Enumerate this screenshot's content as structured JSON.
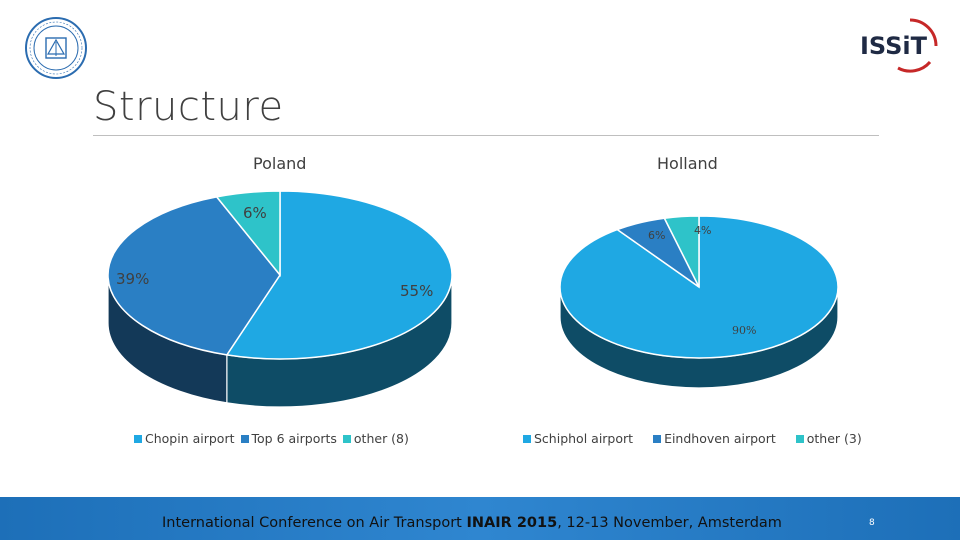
{
  "slide": {
    "title": "Structure",
    "footer_pre": "International Conference on Air Transport ",
    "footer_bold": "INAIR 2015",
    "footer_post": ", 12-13 November, Amsterdam",
    "page_number": "8",
    "logo_right_text": "ISSiT"
  },
  "chart_data": [
    {
      "type": "pie",
      "title": "Poland",
      "categories": [
        "Chopin airport",
        "Top 6 airports",
        "other (8)"
      ],
      "values": [
        55,
        39,
        6
      ],
      "labels": [
        "55%",
        "39%",
        "6%"
      ],
      "colors": [
        "#1fa8e3",
        "#2a7fc4",
        "#2ec3c9"
      ],
      "legend": "bottom"
    },
    {
      "type": "pie",
      "title": "Holland",
      "categories": [
        "Schiphol airport",
        "Eindhoven airport",
        "other (3)"
      ],
      "values": [
        90,
        6,
        4
      ],
      "labels": [
        "90%",
        "6%",
        "4%"
      ],
      "colors": [
        "#1fa8e3",
        "#2a7fc4",
        "#2ec3c9"
      ],
      "legend": "bottom"
    }
  ]
}
